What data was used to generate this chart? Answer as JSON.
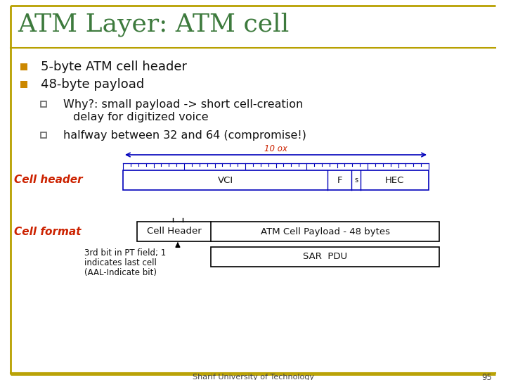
{
  "title": "ATM Layer: ATM cell",
  "title_color": "#3d7a3d",
  "title_fontsize": 26,
  "bg_color": "#ffffff",
  "border_color": "#b8a000",
  "bullet1": "5-byte ATM cell header",
  "bullet2": "48-byte payload",
  "why_line1": "Why?: small payload -> short cell-creation",
  "why_line2": "    delay for digitized voice",
  "sub2": "halfway between 32 and 64 (compromise!)",
  "cell_header_label": "Cell header",
  "cell_format_label": "Cell format",
  "label_color": "#cc2200",
  "text_color": "#111111",
  "diagram_color": "#0000bb",
  "tick_color": "#0000bb",
  "dim_label": "10 ox",
  "dim_color": "#cc2200",
  "vcl_label": "VCI",
  "f_label": "F",
  "s_label": "s",
  "hec_label": "HEC",
  "cell_header_box": "Cell Header",
  "atm_payload_box": "ATM Cell Payload - 48 bytes",
  "sar_pdu_box": "SAR  PDU",
  "arrow_text1": "3rd bit in PT field; 1",
  "arrow_text2": "indicates last cell",
  "arrow_text3": "(AAL-Indicate bit)",
  "footer_text": "Sharif University of Technology",
  "footer_page": "95",
  "bullet_color": "#cc8800",
  "sub_bullet_color": "#888888"
}
